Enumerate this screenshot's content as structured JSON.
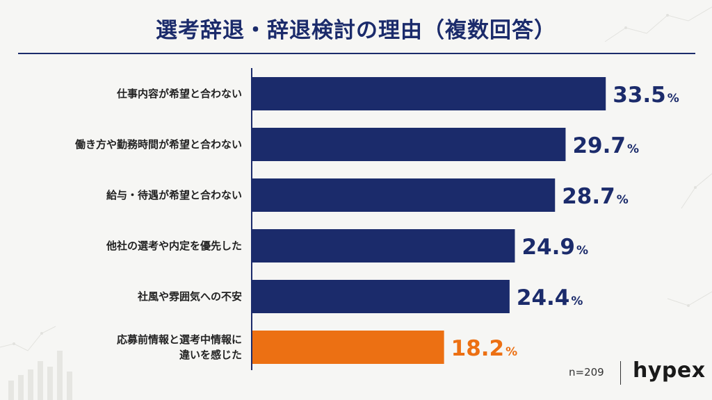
{
  "header": {
    "title": "選考辞退・辞退検討の理由（複数回答）"
  },
  "footer": {
    "sample_size": "n=209",
    "brand": "hypex"
  },
  "colors": {
    "primary_bar": "#1b2b6b",
    "highlight_bar": "#ec7013",
    "text": "#1b2b6b"
  },
  "chart_data": {
    "type": "bar",
    "orientation": "horizontal",
    "categories": [
      [
        "仕事内容が希望と合わない"
      ],
      [
        "働き方や勤務時間が希望と合わない"
      ],
      [
        "給与・待遇が希望と合わない"
      ],
      [
        "他社の選考や内定を優先した"
      ],
      [
        "社風や雰囲気への不安"
      ],
      [
        "応募前情報と選考中情報に",
        "違いを感じた"
      ]
    ],
    "values": [
      33.5,
      29.7,
      28.7,
      24.9,
      24.4,
      18.2
    ],
    "value_labels": [
      "33.5",
      "29.7",
      "28.7",
      "24.9",
      "24.4",
      "18.2"
    ],
    "unit": "%",
    "highlight_index": 5,
    "xlim": [
      0,
      40
    ],
    "grid": false,
    "legend": "none"
  }
}
